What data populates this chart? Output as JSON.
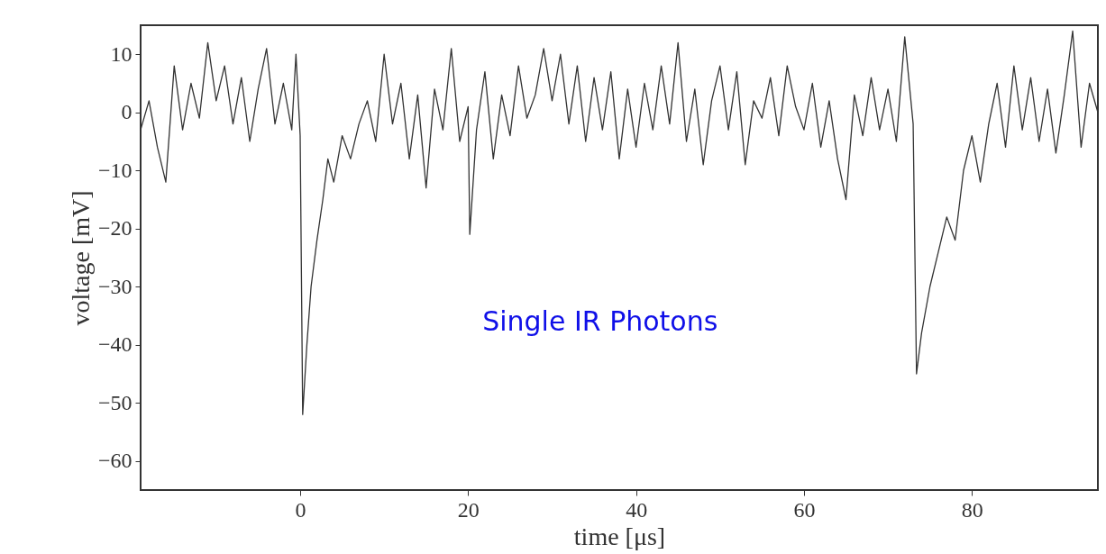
{
  "chart_data": {
    "type": "line",
    "xlabel": "time [μs]",
    "ylabel": "voltage [mV]",
    "annotations": [
      "Single IR Photons"
    ],
    "xlim": [
      -19,
      95
    ],
    "xticks": [
      0,
      20,
      40,
      60,
      80
    ],
    "ylim": [
      -65,
      15
    ],
    "yticks": [
      10,
      0,
      -10,
      -20,
      -30,
      -40,
      -50,
      -60
    ],
    "grid": false,
    "x": [
      -19,
      -18,
      -17,
      -16,
      -15,
      -14,
      -13,
      -12,
      -11,
      -10,
      -9,
      -8,
      -7,
      -6,
      -5,
      -4,
      -3,
      -2,
      -1,
      -0.5,
      0,
      0.3,
      0.8,
      1.3,
      2,
      2.7,
      3.3,
      4,
      5,
      6,
      7,
      8,
      9,
      10,
      11,
      12,
      13,
      14,
      15,
      16,
      17,
      18,
      19,
      20,
      20.2,
      21,
      22,
      23,
      24,
      25,
      26,
      27,
      28,
      29,
      30,
      31,
      32,
      33,
      34,
      35,
      36,
      37,
      38,
      39,
      40,
      41,
      42,
      43,
      44,
      45,
      46,
      47,
      48,
      49,
      50,
      51,
      52,
      53,
      54,
      55,
      56,
      57,
      58,
      59,
      60,
      61,
      62,
      63,
      64,
      65,
      66,
      67,
      68,
      69,
      70,
      71,
      72,
      73,
      73.4,
      74,
      75,
      76,
      77,
      78,
      79,
      80,
      81,
      82,
      83,
      84,
      85,
      86,
      87,
      88,
      89,
      90,
      91,
      92,
      93,
      94,
      95
    ],
    "series": [
      {
        "color": "#333333",
        "values": [
          -3,
          2,
          -6,
          -12,
          8,
          -3,
          5,
          -1,
          12,
          2,
          8,
          -2,
          6,
          -5,
          4,
          11,
          -2,
          5,
          -3,
          10,
          -4,
          -52,
          -40,
          -30,
          -22,
          -15,
          -8,
          -12,
          -4,
          -8,
          -2,
          2,
          -5,
          10,
          -2,
          5,
          -8,
          3,
          -13,
          4,
          -3,
          11,
          -5,
          1,
          -21,
          -3,
          7,
          -8,
          3,
          -4,
          8,
          -1,
          3,
          11,
          2,
          10,
          -2,
          8,
          -5,
          6,
          -3,
          7,
          -8,
          4,
          -6,
          5,
          -3,
          8,
          -2,
          12,
          -5,
          4,
          -9,
          2,
          8,
          -3,
          7,
          -9,
          2,
          -1,
          6,
          -4,
          8,
          1,
          -3,
          5,
          -6,
          2,
          -8,
          -15,
          3,
          -4,
          6,
          -3,
          4,
          -5,
          13,
          -2,
          -45,
          -38,
          -30,
          -24,
          -18,
          -22,
          -10,
          -4,
          -12,
          -2,
          5,
          -6,
          8,
          -3,
          6,
          -5,
          4,
          -7,
          3,
          14,
          -6,
          5,
          0
        ]
      }
    ]
  }
}
